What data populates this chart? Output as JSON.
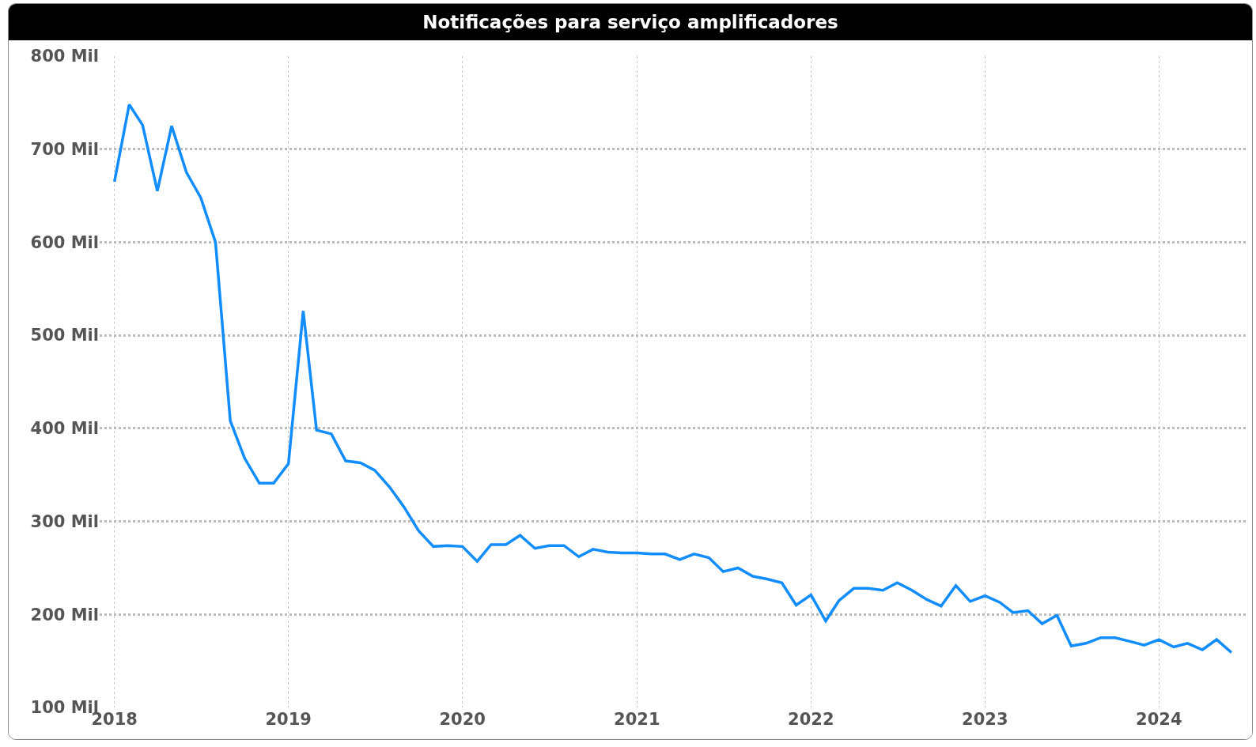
{
  "chart_data": {
    "type": "line",
    "title": "Notificações para serviço amplificadores",
    "x": [
      "2018-01",
      "2018-02",
      "2018-03",
      "2018-04",
      "2018-05",
      "2018-06",
      "2018-07",
      "2018-08",
      "2018-09",
      "2018-10",
      "2018-11",
      "2018-12",
      "2019-01",
      "2019-02",
      "2019-03",
      "2019-04",
      "2019-05",
      "2019-06",
      "2019-07",
      "2019-08",
      "2019-09",
      "2019-10",
      "2019-11",
      "2019-12",
      "2020-01",
      "2020-02",
      "2020-03",
      "2020-04",
      "2020-05",
      "2020-06",
      "2020-07",
      "2020-08",
      "2020-09",
      "2020-10",
      "2020-11",
      "2020-12",
      "2021-01",
      "2021-02",
      "2021-03",
      "2021-04",
      "2021-05",
      "2021-06",
      "2021-07",
      "2021-08",
      "2021-09",
      "2021-10",
      "2021-11",
      "2021-12",
      "2022-01",
      "2022-02",
      "2022-03",
      "2022-04",
      "2022-05",
      "2022-06",
      "2022-07",
      "2022-08",
      "2022-09",
      "2022-10",
      "2022-11",
      "2022-12",
      "2023-01",
      "2023-02",
      "2023-03",
      "2023-04",
      "2023-05",
      "2023-06",
      "2023-07",
      "2023-08",
      "2023-09",
      "2023-10",
      "2023-11",
      "2023-12",
      "2024-01",
      "2024-02",
      "2024-03",
      "2024-04",
      "2024-05",
      "2024-06"
    ],
    "series": [
      {
        "color": "#118dff",
        "values": [
          665,
          748,
          726,
          655,
          725,
          675,
          648,
          600,
          408,
          368,
          341,
          341,
          362,
          526,
          398,
          394,
          365,
          363,
          355,
          337,
          315,
          290,
          273,
          274,
          273,
          257,
          275,
          275,
          285,
          271,
          274,
          274,
          262,
          270,
          267,
          266,
          266,
          265,
          265,
          259,
          265,
          261,
          246,
          250,
          241,
          238,
          234,
          210,
          221,
          193,
          215,
          228,
          228,
          226,
          234,
          226,
          216,
          209,
          231,
          214,
          220,
          213,
          202,
          204,
          190,
          199,
          166,
          169,
          175,
          175,
          171,
          167,
          173,
          165,
          169,
          162,
          173,
          159
        ]
      }
    ],
    "xlim": [
      "2017-12-01",
      "2024-07-01"
    ],
    "xticks": [
      {
        "value": "2018-01-01",
        "label": "2018"
      },
      {
        "value": "2019-01-01",
        "label": "2019"
      },
      {
        "value": "2020-01-01",
        "label": "2020"
      },
      {
        "value": "2021-01-01",
        "label": "2021"
      },
      {
        "value": "2022-01-01",
        "label": "2022"
      },
      {
        "value": "2023-01-01",
        "label": "2023"
      },
      {
        "value": "2024-01-01",
        "label": "2024"
      }
    ],
    "ylim": [
      100,
      800
    ],
    "yticks": [
      {
        "value": 100,
        "label": "100 Mil"
      },
      {
        "value": 200,
        "label": "200 Mil"
      },
      {
        "value": 300,
        "label": "300 Mil"
      },
      {
        "value": 400,
        "label": "400 Mil"
      },
      {
        "value": 500,
        "label": "500 Mil"
      },
      {
        "value": 600,
        "label": "600 Mil"
      },
      {
        "value": 700,
        "label": "700 Mil"
      },
      {
        "value": 800,
        "label": "800 Mil"
      }
    ],
    "grid": true,
    "marker": "none",
    "line_style": "solid"
  }
}
